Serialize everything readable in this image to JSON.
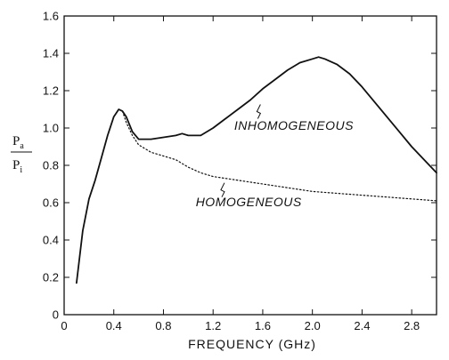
{
  "chart_data": {
    "type": "line",
    "xlabel": "FREQUENCY (GHz)",
    "ylabel": {
      "numerator": "P",
      "numerator_sub": "a",
      "denominator": "P",
      "denominator_sub": "i"
    },
    "xlim": [
      0,
      3.0
    ],
    "ylim": [
      0,
      1.6
    ],
    "x_ticks": [
      0,
      0.4,
      0.8,
      1.2,
      1.6,
      2.0,
      2.4,
      2.8
    ],
    "x_tick_labels": [
      "0",
      "0.4",
      "0.8",
      "1.2",
      "1.6",
      "2.0",
      "2.4",
      "2.8"
    ],
    "y_ticks": [
      0,
      0.2,
      0.4,
      0.6,
      0.8,
      1.0,
      1.2,
      1.4,
      1.6
    ],
    "y_tick_labels": [
      "0",
      "0.2",
      "0.4",
      "0.6",
      "0.8",
      "1.0",
      "1.2",
      "1.4",
      "1.6"
    ],
    "grid": false,
    "series": [
      {
        "name": "INHOMOGENEOUS",
        "style": "solid",
        "x": [
          0.1,
          0.15,
          0.2,
          0.25,
          0.3,
          0.35,
          0.4,
          0.44,
          0.47,
          0.5,
          0.55,
          0.6,
          0.7,
          0.8,
          0.9,
          0.95,
          1.0,
          1.1,
          1.2,
          1.3,
          1.4,
          1.5,
          1.6,
          1.7,
          1.8,
          1.9,
          2.0,
          2.05,
          2.1,
          2.2,
          2.3,
          2.4,
          2.5,
          2.6,
          2.7,
          2.8,
          2.9,
          3.0
        ],
        "y": [
          0.17,
          0.45,
          0.62,
          0.72,
          0.84,
          0.96,
          1.06,
          1.1,
          1.09,
          1.06,
          0.98,
          0.94,
          0.94,
          0.95,
          0.96,
          0.97,
          0.96,
          0.96,
          1.0,
          1.05,
          1.1,
          1.15,
          1.21,
          1.26,
          1.31,
          1.35,
          1.37,
          1.38,
          1.37,
          1.34,
          1.29,
          1.22,
          1.14,
          1.06,
          0.98,
          0.9,
          0.83,
          0.76
        ]
      },
      {
        "name": "HOMOGENEOUS",
        "style": "dotted",
        "x": [
          0.47,
          0.5,
          0.55,
          0.6,
          0.7,
          0.8,
          0.9,
          1.0,
          1.1,
          1.2,
          1.4,
          1.6,
          1.8,
          2.0,
          2.2,
          2.4,
          2.6,
          2.8,
          3.0
        ],
        "y": [
          1.09,
          1.03,
          0.96,
          0.91,
          0.87,
          0.85,
          0.83,
          0.79,
          0.76,
          0.74,
          0.72,
          0.7,
          0.68,
          0.66,
          0.65,
          0.64,
          0.63,
          0.62,
          0.61
        ]
      }
    ]
  }
}
